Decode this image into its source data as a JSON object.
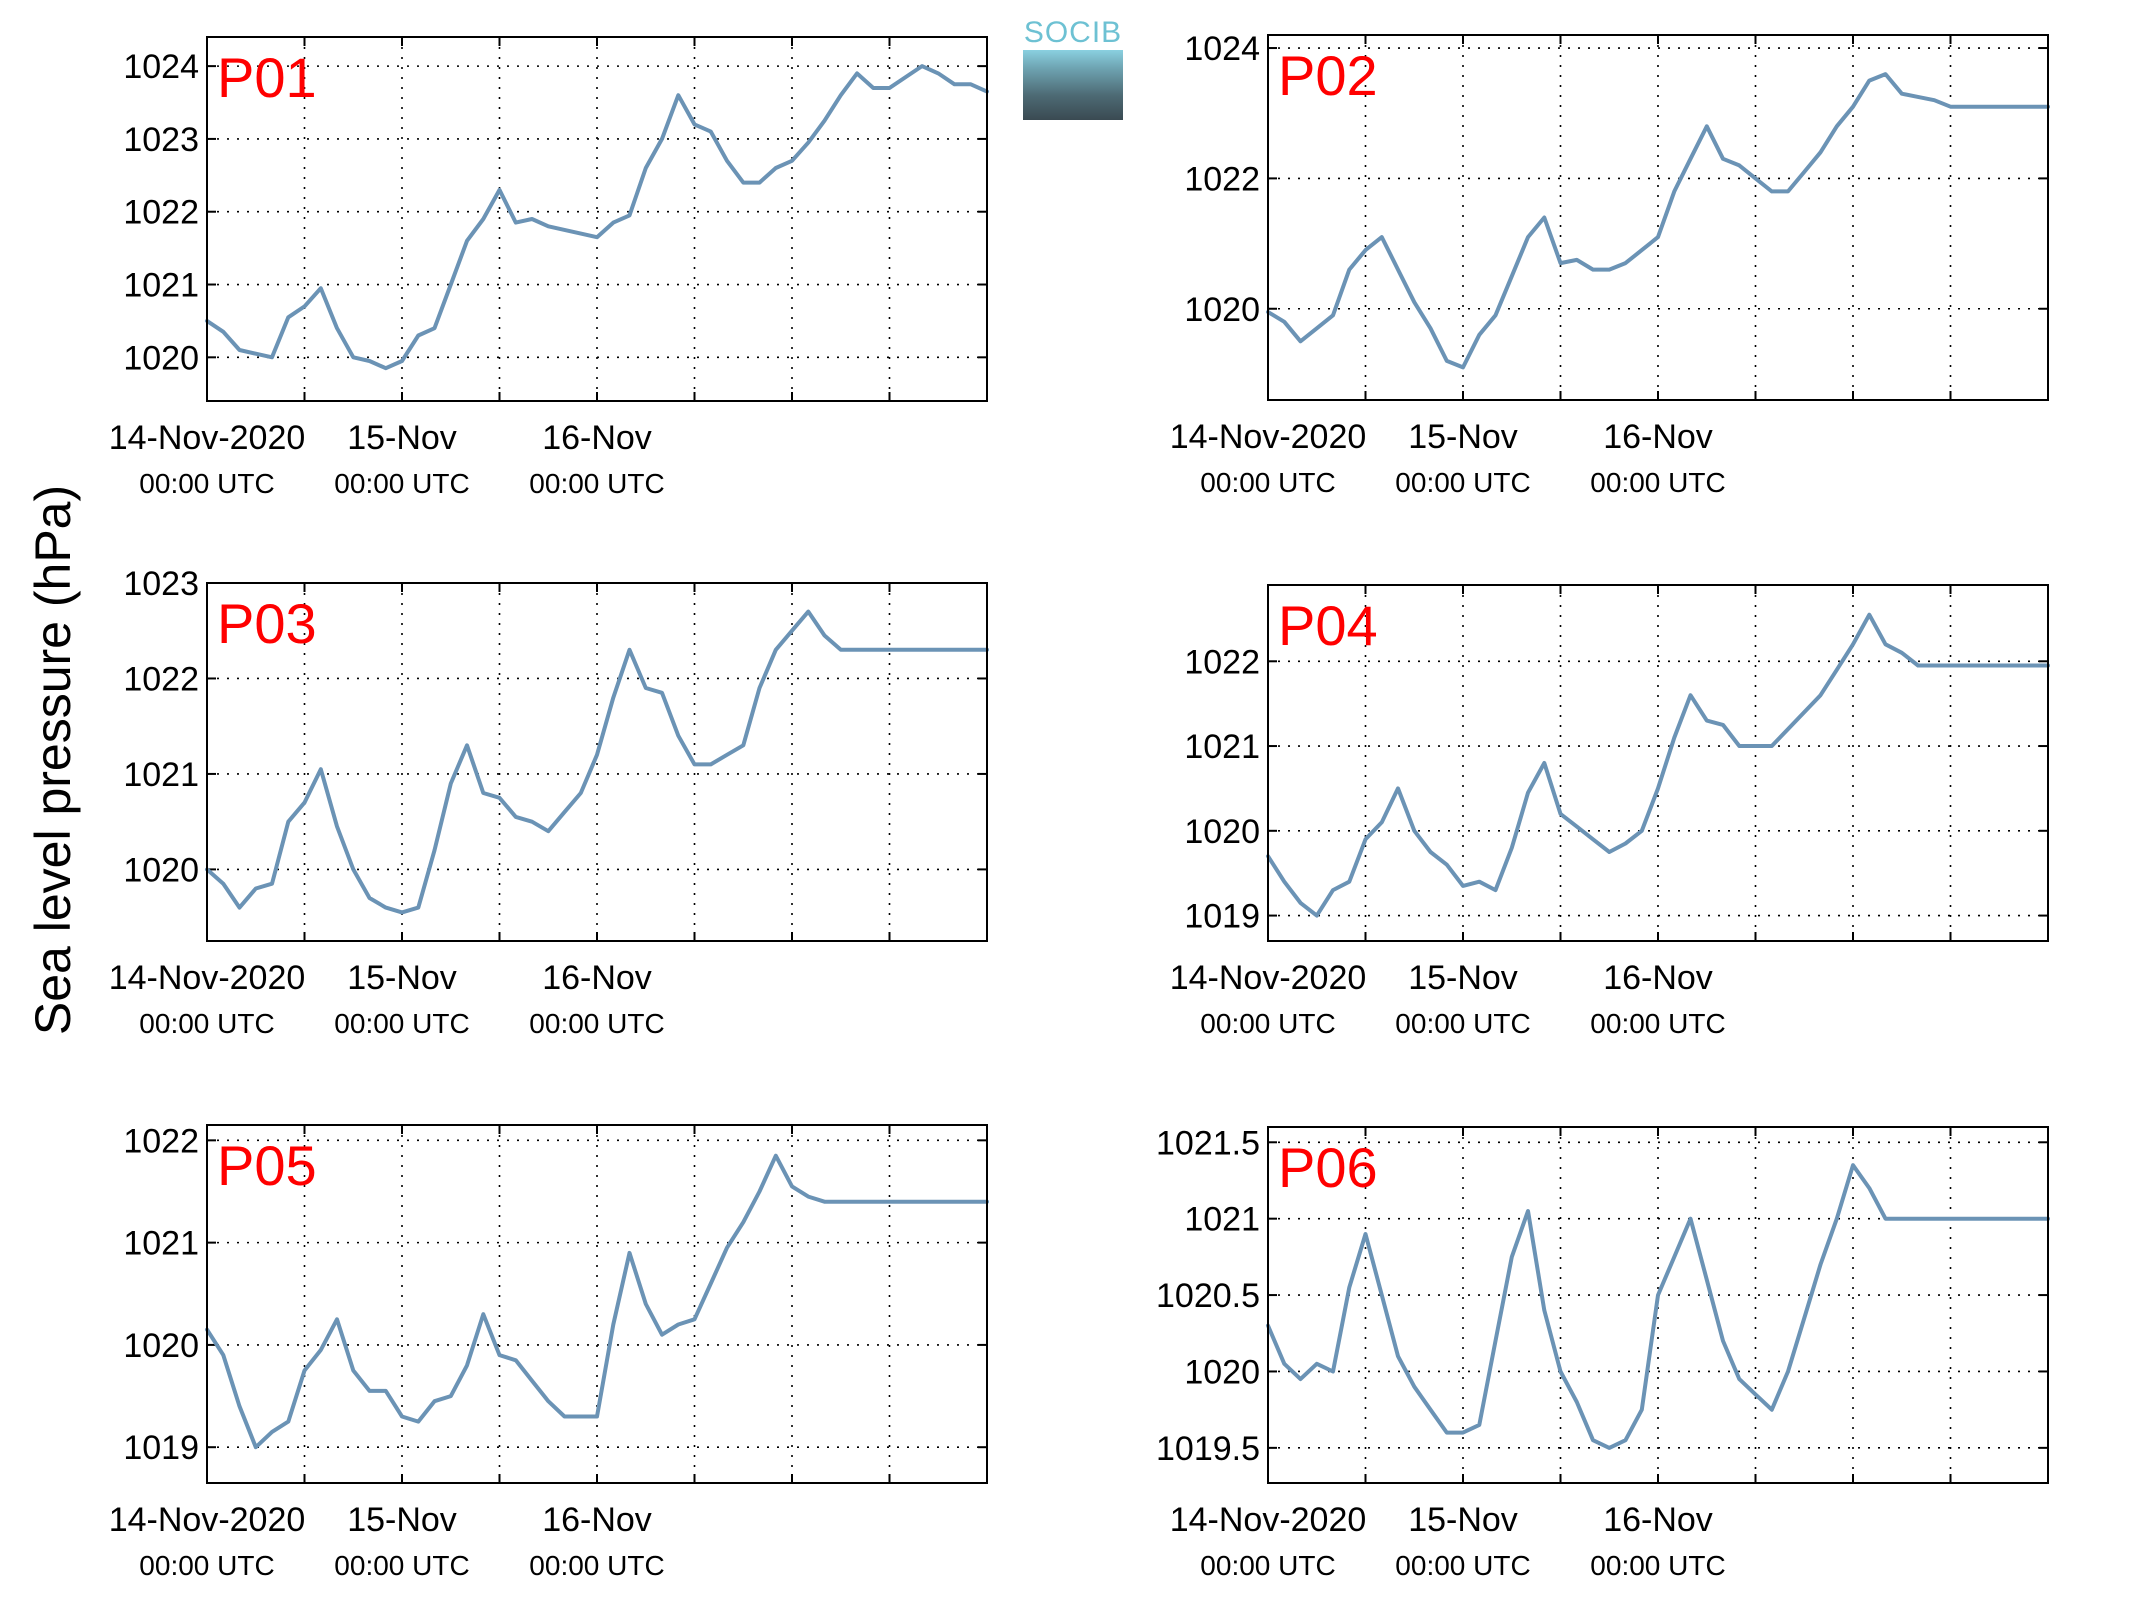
{
  "ylabel": "Sea level pressure (hPa)",
  "logo_text": "SOCIB",
  "colors": {
    "line": "#6b93b5",
    "panel_label": "#ff0000",
    "axis": "#000000"
  },
  "chart_data": [
    {
      "type": "line",
      "label": "P01",
      "ylim": [
        1019.4,
        1024.4
      ],
      "yticks": [
        1020,
        1021,
        1022,
        1023,
        1024
      ],
      "x": [
        0,
        2,
        4,
        6,
        8,
        10,
        12,
        14,
        16,
        18,
        20,
        22,
        24,
        26,
        28,
        30,
        32,
        34,
        36,
        38,
        40,
        42,
        44,
        46,
        48,
        50,
        52,
        54,
        56,
        58,
        60,
        62,
        64,
        66,
        68,
        70,
        72,
        74,
        76,
        78,
        80,
        82,
        84,
        86,
        88,
        90,
        92,
        94,
        96
      ],
      "y": [
        1020.5,
        1020.35,
        1020.1,
        1020.05,
        1020.0,
        1020.55,
        1020.7,
        1020.95,
        1020.4,
        1020.0,
        1019.95,
        1019.85,
        1019.95,
        1020.3,
        1020.4,
        1021.0,
        1021.6,
        1021.9,
        1022.3,
        1021.85,
        1021.9,
        1021.8,
        1021.75,
        1021.7,
        1021.65,
        1021.85,
        1021.95,
        1022.6,
        1023.0,
        1023.6,
        1023.2,
        1023.1,
        1022.7,
        1022.4,
        1022.4,
        1022.6,
        1022.7,
        1022.95,
        1023.25,
        1023.6,
        1023.9,
        1023.7,
        1023.7,
        1023.85,
        1024.0,
        1023.9,
        1023.75,
        1023.75,
        1023.65
      ]
    },
    {
      "type": "line",
      "label": "P02",
      "ylim": [
        1018.6,
        1024.2
      ],
      "yticks": [
        1020,
        1022,
        1024
      ],
      "x": [
        0,
        2,
        4,
        6,
        8,
        10,
        12,
        14,
        16,
        18,
        20,
        22,
        24,
        26,
        28,
        30,
        32,
        34,
        36,
        38,
        40,
        42,
        44,
        46,
        48,
        50,
        52,
        54,
        56,
        58,
        60,
        62,
        64,
        66,
        68,
        70,
        72,
        74,
        76,
        78,
        80,
        82,
        84,
        86,
        88,
        90,
        92,
        94,
        96
      ],
      "y": [
        1019.95,
        1019.8,
        1019.5,
        1019.7,
        1019.9,
        1020.6,
        1020.9,
        1021.1,
        1020.6,
        1020.1,
        1019.7,
        1019.2,
        1019.1,
        1019.6,
        1019.9,
        1020.5,
        1021.1,
        1021.4,
        1020.7,
        1020.75,
        1020.6,
        1020.6,
        1020.7,
        1020.9,
        1021.1,
        1021.8,
        1022.3,
        1022.8,
        1022.3,
        1022.2,
        1022.0,
        1021.8,
        1021.8,
        1022.1,
        1022.4,
        1022.8,
        1023.1,
        1023.5,
        1023.6,
        1023.3,
        1023.25,
        1023.2,
        1023.1,
        1023.1,
        1023.1,
        1023.1,
        1023.1,
        1023.1,
        1023.1
      ]
    },
    {
      "type": "line",
      "label": "P03",
      "ylim": [
        1019.25,
        1023.0
      ],
      "yticks": [
        1020,
        1021,
        1022,
        1023
      ],
      "x": [
        0,
        2,
        4,
        6,
        8,
        10,
        12,
        14,
        16,
        18,
        20,
        22,
        24,
        26,
        28,
        30,
        32,
        34,
        36,
        38,
        40,
        42,
        44,
        46,
        48,
        50,
        52,
        54,
        56,
        58,
        60,
        62,
        64,
        66,
        68,
        70,
        72,
        74,
        76,
        78,
        80,
        82,
        84,
        86,
        88,
        90,
        92,
        94,
        96
      ],
      "y": [
        1020.0,
        1019.85,
        1019.6,
        1019.8,
        1019.85,
        1020.5,
        1020.7,
        1021.05,
        1020.45,
        1020.0,
        1019.7,
        1019.6,
        1019.55,
        1019.6,
        1020.2,
        1020.9,
        1021.3,
        1020.8,
        1020.75,
        1020.55,
        1020.5,
        1020.4,
        1020.6,
        1020.8,
        1021.2,
        1021.8,
        1022.3,
        1021.9,
        1021.85,
        1021.4,
        1021.1,
        1021.1,
        1021.2,
        1021.3,
        1021.9,
        1022.3,
        1022.5,
        1022.7,
        1022.45,
        1022.3,
        1022.3,
        1022.3,
        1022.3,
        1022.3,
        1022.3,
        1022.3,
        1022.3,
        1022.3,
        1022.3
      ]
    },
    {
      "type": "line",
      "label": "P04",
      "ylim": [
        1018.7,
        1022.9
      ],
      "yticks": [
        1019,
        1020,
        1021,
        1022
      ],
      "x": [
        0,
        2,
        4,
        6,
        8,
        10,
        12,
        14,
        16,
        18,
        20,
        22,
        24,
        26,
        28,
        30,
        32,
        34,
        36,
        38,
        40,
        42,
        44,
        46,
        48,
        50,
        52,
        54,
        56,
        58,
        60,
        62,
        64,
        66,
        68,
        70,
        72,
        74,
        76,
        78,
        80,
        82,
        84,
        86,
        88,
        90,
        92,
        94,
        96
      ],
      "y": [
        1019.7,
        1019.4,
        1019.15,
        1019.0,
        1019.3,
        1019.4,
        1019.9,
        1020.1,
        1020.5,
        1020.0,
        1019.75,
        1019.6,
        1019.35,
        1019.4,
        1019.3,
        1019.8,
        1020.45,
        1020.8,
        1020.2,
        1020.05,
        1019.9,
        1019.75,
        1019.85,
        1020.0,
        1020.5,
        1021.1,
        1021.6,
        1021.3,
        1021.25,
        1021.0,
        1021.0,
        1021.0,
        1021.2,
        1021.4,
        1021.6,
        1021.9,
        1022.2,
        1022.55,
        1022.2,
        1022.1,
        1021.95,
        1021.95,
        1021.95,
        1021.95,
        1021.95,
        1021.95,
        1021.95,
        1021.95,
        1021.95
      ]
    },
    {
      "type": "line",
      "label": "P05",
      "ylim": [
        1018.65,
        1022.15
      ],
      "yticks": [
        1019,
        1020,
        1021,
        1022
      ],
      "x": [
        0,
        2,
        4,
        6,
        8,
        10,
        12,
        14,
        16,
        18,
        20,
        22,
        24,
        26,
        28,
        30,
        32,
        34,
        36,
        38,
        40,
        42,
        44,
        46,
        48,
        50,
        52,
        54,
        56,
        58,
        60,
        62,
        64,
        66,
        68,
        70,
        72,
        74,
        76,
        78,
        80,
        82,
        84,
        86,
        88,
        90,
        92,
        94,
        96
      ],
      "y": [
        1020.15,
        1019.9,
        1019.4,
        1019.0,
        1019.15,
        1019.25,
        1019.75,
        1019.95,
        1020.25,
        1019.75,
        1019.55,
        1019.55,
        1019.3,
        1019.25,
        1019.45,
        1019.5,
        1019.8,
        1020.3,
        1019.9,
        1019.85,
        1019.65,
        1019.45,
        1019.3,
        1019.3,
        1019.3,
        1020.2,
        1020.9,
        1020.4,
        1020.1,
        1020.2,
        1020.25,
        1020.6,
        1020.95,
        1021.2,
        1021.5,
        1021.85,
        1021.55,
        1021.45,
        1021.4,
        1021.4,
        1021.4,
        1021.4,
        1021.4,
        1021.4,
        1021.4,
        1021.4,
        1021.4,
        1021.4,
        1021.4
      ]
    },
    {
      "type": "line",
      "label": "P06",
      "ylim": [
        1019.27,
        1021.6
      ],
      "yticks": [
        1019.5,
        1020,
        1020.5,
        1021,
        1021.5
      ],
      "x": [
        0,
        2,
        4,
        6,
        8,
        10,
        12,
        14,
        16,
        18,
        20,
        22,
        24,
        26,
        28,
        30,
        32,
        34,
        36,
        38,
        40,
        42,
        44,
        46,
        48,
        50,
        52,
        54,
        56,
        58,
        60,
        62,
        64,
        66,
        68,
        70,
        72,
        74,
        76,
        78,
        80,
        82,
        84,
        86,
        88,
        90,
        92,
        94,
        96
      ],
      "y": [
        1020.3,
        1020.05,
        1019.95,
        1020.05,
        1020.0,
        1020.55,
        1020.9,
        1020.5,
        1020.1,
        1019.9,
        1019.75,
        1019.6,
        1019.6,
        1019.65,
        1020.2,
        1020.75,
        1021.05,
        1020.4,
        1020.0,
        1019.8,
        1019.55,
        1019.5,
        1019.55,
        1019.75,
        1020.5,
        1020.75,
        1021.0,
        1020.6,
        1020.2,
        1019.95,
        1019.85,
        1019.75,
        1020.0,
        1020.35,
        1020.7,
        1021.0,
        1021.35,
        1021.2,
        1021.0,
        1021.0,
        1021.0,
        1021.0,
        1021.0,
        1021.0,
        1021.0,
        1021.0,
        1021.0,
        1021.0,
        1021.0
      ]
    }
  ],
  "xticks": [
    {
      "hour": 0,
      "date": "14-Nov-2020",
      "time": "00:00 UTC"
    },
    {
      "hour": 24,
      "date": "15-Nov",
      "time": "00:00 UTC"
    },
    {
      "hour": 48,
      "date": "16-Nov",
      "time": "00:00 UTC"
    }
  ]
}
